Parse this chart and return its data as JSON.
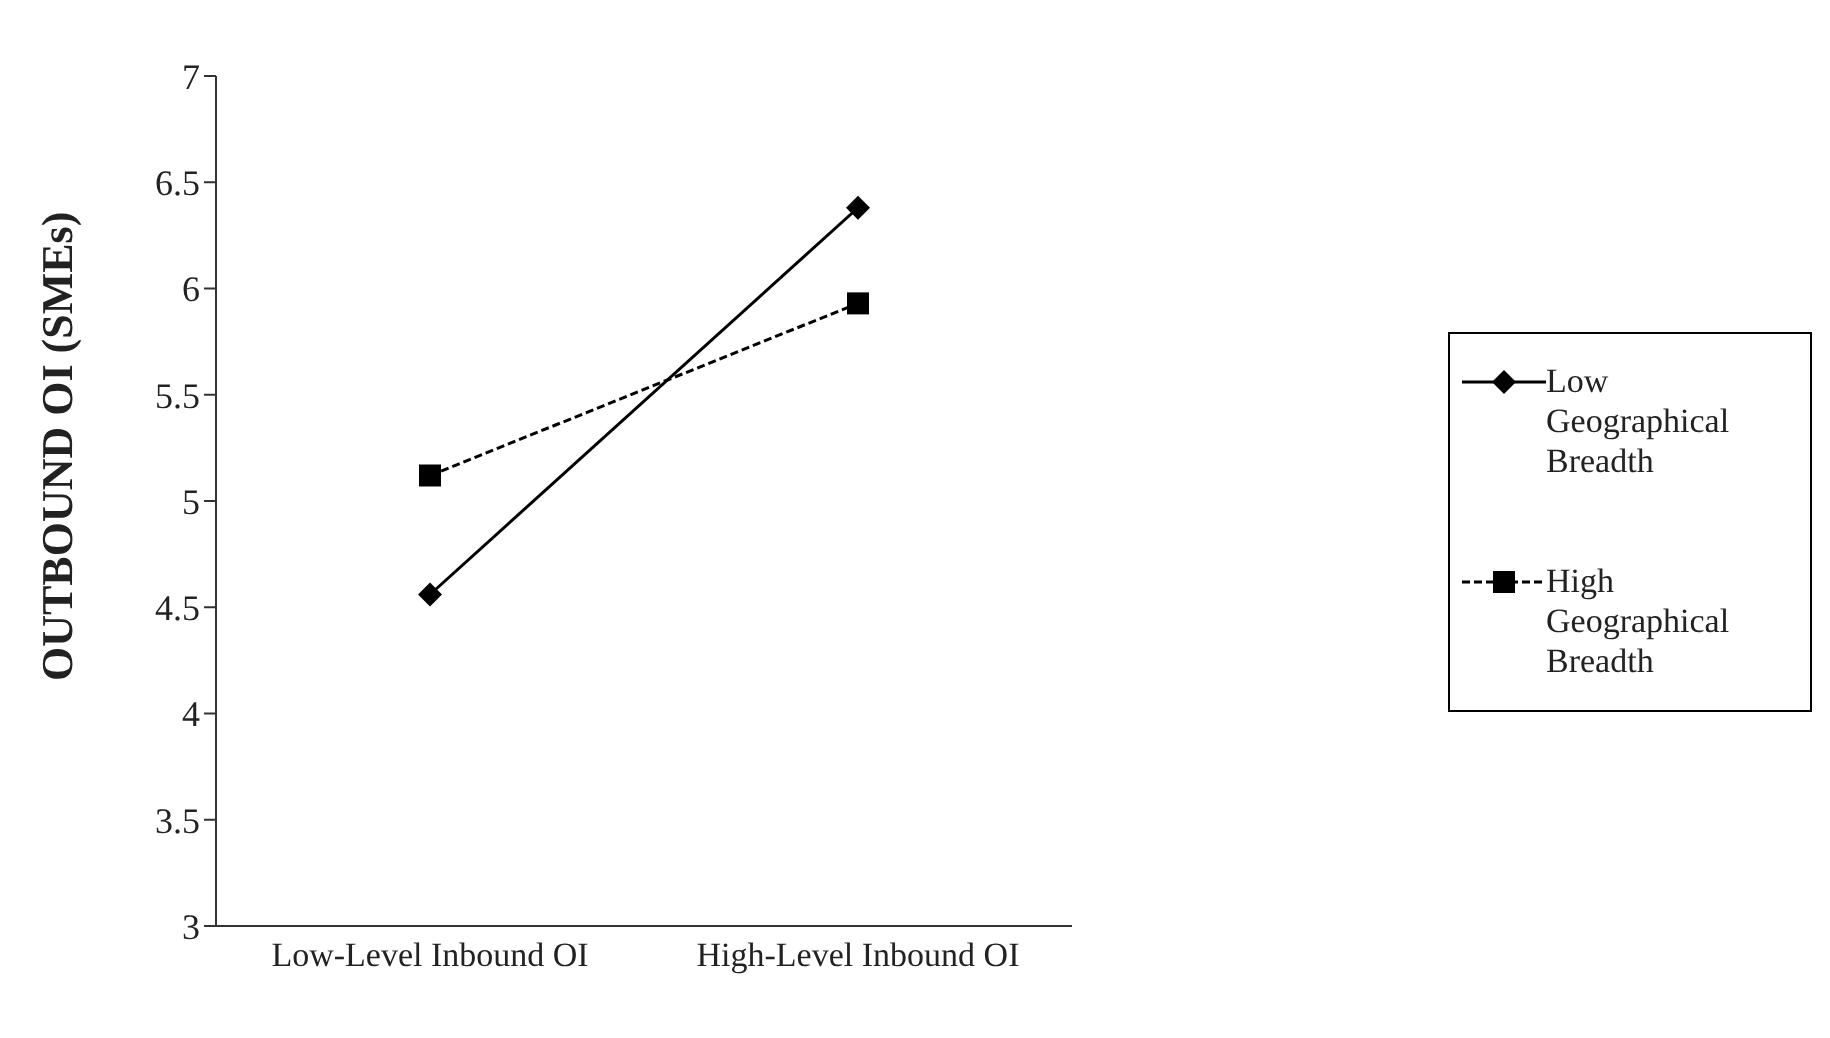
{
  "chart_data": {
    "type": "line",
    "ylabel": "OUTBOUND OI (SMEs)",
    "categories": [
      "Low-Level Inbound OI",
      "High-Level Inbound OI"
    ],
    "series": [
      {
        "name": "Low Geographical Breadth",
        "color": "#000000",
        "values": [
          4.56,
          6.38
        ],
        "marker": "diamond",
        "line_style": "solid"
      },
      {
        "name": "High Geographical Breadth",
        "color": "#000000",
        "values": [
          5.12,
          5.93
        ],
        "marker": "square",
        "line_style": "dashed"
      }
    ],
    "ylim": [
      3,
      7
    ],
    "yticks": [
      3,
      3.5,
      4,
      4.5,
      5,
      5.5,
      6,
      6.5,
      7
    ],
    "grid": false,
    "legend": "right"
  }
}
